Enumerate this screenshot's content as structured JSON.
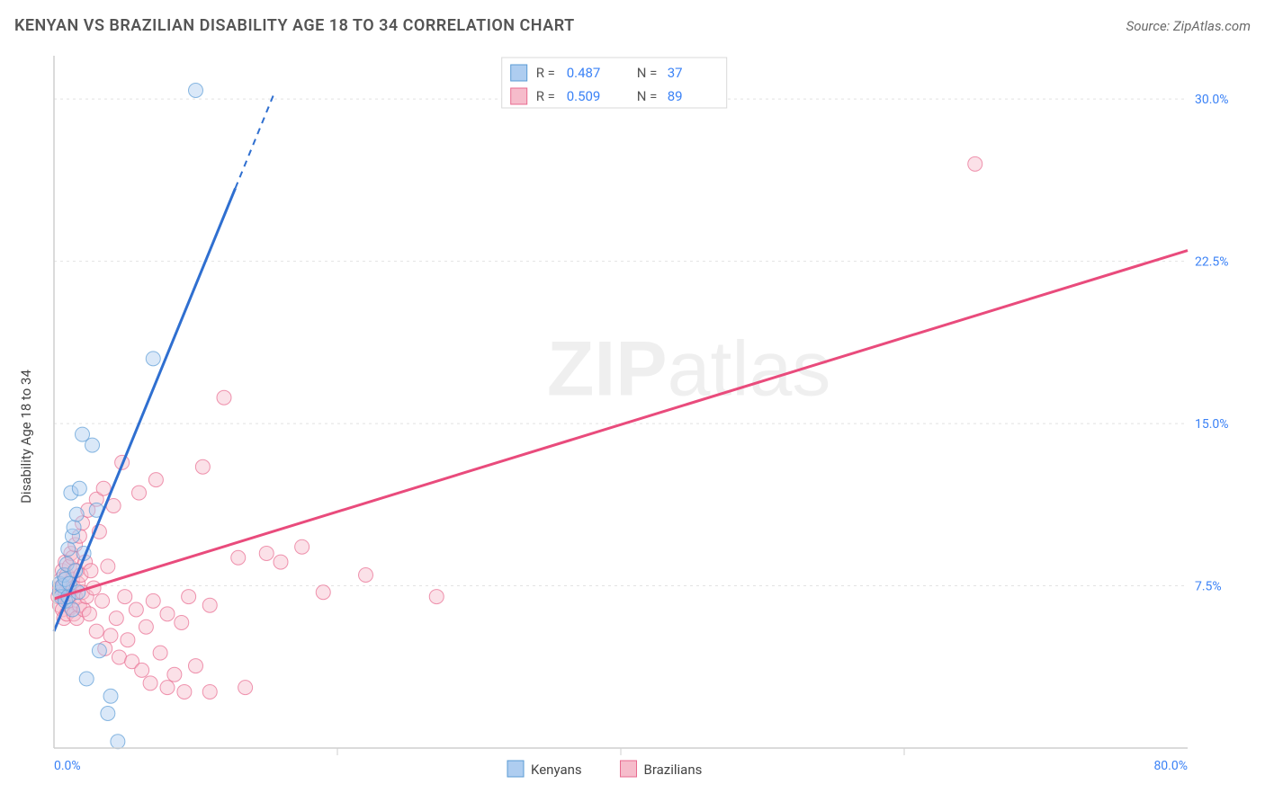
{
  "title": "KENYAN VS BRAZILIAN DISABILITY AGE 18 TO 34 CORRELATION CHART",
  "source": "Source: ZipAtlas.com",
  "watermark": {
    "left": "ZIP",
    "right": "atlas"
  },
  "chart": {
    "type": "scatter",
    "y_axis_label": "Disability Age 18 to 34",
    "xlim": [
      0,
      80
    ],
    "ylim": [
      0,
      32
    ],
    "x_ticks": [
      {
        "v": 0,
        "label": "0.0%"
      },
      {
        "v": 80,
        "label": "80.0%"
      }
    ],
    "y_ticks": [
      {
        "v": 7.5,
        "label": "7.5%"
      },
      {
        "v": 15,
        "label": "15.0%"
      },
      {
        "v": 22.5,
        "label": "22.5%"
      },
      {
        "v": 30,
        "label": "30.0%"
      }
    ],
    "x_minor_step": 20,
    "grid_color": "#e2e2e2",
    "axis_color": "#cfcfcf",
    "tick_color": "#3b82f6",
    "background_color": "#ffffff",
    "marker_radius": 8,
    "marker_opacity": 0.45,
    "trend_width": 3,
    "series": [
      {
        "name": "Kenyans",
        "color_stroke": "#5a9bd5",
        "color_fill": "#aecdf0",
        "trend_color": "#2f6fd0",
        "trend": {
          "x0": 0,
          "y0": 5.4,
          "x1": 15.5,
          "y1": 30.2,
          "solid_x_end": 12.8
        },
        "stats": {
          "R": "0.487",
          "N": "37"
        },
        "points": [
          [
            0.4,
            7.2
          ],
          [
            0.4,
            7.6
          ],
          [
            0.5,
            7.0
          ],
          [
            0.6,
            7.5
          ],
          [
            0.7,
            8.0
          ],
          [
            0.8,
            6.8
          ],
          [
            0.8,
            7.8
          ],
          [
            0.9,
            8.5
          ],
          [
            1.0,
            9.2
          ],
          [
            1.0,
            7.0
          ],
          [
            1.1,
            7.6
          ],
          [
            1.2,
            11.8
          ],
          [
            1.3,
            9.8
          ],
          [
            1.3,
            6.4
          ],
          [
            1.4,
            10.2
          ],
          [
            1.5,
            8.2
          ],
          [
            1.6,
            10.8
          ],
          [
            1.7,
            7.2
          ],
          [
            1.8,
            12.0
          ],
          [
            2.0,
            14.5
          ],
          [
            2.1,
            9.0
          ],
          [
            2.3,
            3.2
          ],
          [
            2.7,
            14.0
          ],
          [
            3.0,
            11.0
          ],
          [
            3.2,
            4.5
          ],
          [
            3.8,
            1.6
          ],
          [
            4.0,
            2.4
          ],
          [
            4.5,
            0.3
          ],
          [
            7.0,
            18.0
          ],
          [
            10.0,
            30.4
          ]
        ]
      },
      {
        "name": "Brazilians",
        "color_stroke": "#e86a8f",
        "color_fill": "#f6bccb",
        "trend_color": "#e94b7c",
        "trend": {
          "x0": 0,
          "y0": 6.9,
          "x1": 80,
          "y1": 23.0,
          "solid_x_end": 80
        },
        "stats": {
          "R": "0.509",
          "N": "89"
        },
        "points": [
          [
            0.3,
            7.0
          ],
          [
            0.4,
            7.4
          ],
          [
            0.4,
            6.6
          ],
          [
            0.5,
            7.8
          ],
          [
            0.5,
            7.1
          ],
          [
            0.6,
            6.4
          ],
          [
            0.6,
            8.2
          ],
          [
            0.7,
            7.5
          ],
          [
            0.7,
            6.0
          ],
          [
            0.8,
            8.6
          ],
          [
            0.8,
            7.2
          ],
          [
            0.9,
            6.2
          ],
          [
            0.9,
            8.0
          ],
          [
            1.0,
            7.6
          ],
          [
            1.0,
            6.8
          ],
          [
            1.1,
            8.4
          ],
          [
            1.1,
            7.0
          ],
          [
            1.2,
            9.0
          ],
          [
            1.2,
            6.5
          ],
          [
            1.3,
            7.8
          ],
          [
            1.3,
            8.8
          ],
          [
            1.4,
            6.2
          ],
          [
            1.4,
            7.4
          ],
          [
            1.5,
            9.4
          ],
          [
            1.5,
            7.0
          ],
          [
            1.6,
            8.2
          ],
          [
            1.6,
            6.0
          ],
          [
            1.7,
            7.6
          ],
          [
            1.8,
            9.8
          ],
          [
            1.8,
            6.6
          ],
          [
            1.9,
            8.0
          ],
          [
            2.0,
            7.2
          ],
          [
            2.0,
            10.4
          ],
          [
            2.1,
            6.4
          ],
          [
            2.2,
            8.6
          ],
          [
            2.3,
            7.0
          ],
          [
            2.4,
            11.0
          ],
          [
            2.5,
            6.2
          ],
          [
            2.6,
            8.2
          ],
          [
            2.8,
            7.4
          ],
          [
            3.0,
            11.5
          ],
          [
            3.0,
            5.4
          ],
          [
            3.2,
            10.0
          ],
          [
            3.4,
            6.8
          ],
          [
            3.5,
            12.0
          ],
          [
            3.6,
            4.6
          ],
          [
            3.8,
            8.4
          ],
          [
            4.0,
            5.2
          ],
          [
            4.2,
            11.2
          ],
          [
            4.4,
            6.0
          ],
          [
            4.6,
            4.2
          ],
          [
            4.8,
            13.2
          ],
          [
            5.0,
            7.0
          ],
          [
            5.2,
            5.0
          ],
          [
            5.5,
            4.0
          ],
          [
            5.8,
            6.4
          ],
          [
            6.0,
            11.8
          ],
          [
            6.2,
            3.6
          ],
          [
            6.5,
            5.6
          ],
          [
            6.8,
            3.0
          ],
          [
            7.0,
            6.8
          ],
          [
            7.2,
            12.4
          ],
          [
            7.5,
            4.4
          ],
          [
            8.0,
            2.8
          ],
          [
            8.0,
            6.2
          ],
          [
            8.5,
            3.4
          ],
          [
            9.0,
            5.8
          ],
          [
            9.2,
            2.6
          ],
          [
            9.5,
            7.0
          ],
          [
            10.0,
            3.8
          ],
          [
            10.5,
            13.0
          ],
          [
            11.0,
            2.6
          ],
          [
            11.0,
            6.6
          ],
          [
            12.0,
            16.2
          ],
          [
            13.0,
            8.8
          ],
          [
            13.5,
            2.8
          ],
          [
            15.0,
            9.0
          ],
          [
            16.0,
            8.6
          ],
          [
            17.5,
            9.3
          ],
          [
            19.0,
            7.2
          ],
          [
            22.0,
            8.0
          ],
          [
            27.0,
            7.0
          ],
          [
            65.0,
            27.0
          ]
        ]
      }
    ],
    "legend": {
      "items": [
        {
          "label": "Kenyans",
          "fill": "#aecdf0",
          "stroke": "#5a9bd5"
        },
        {
          "label": "Brazilians",
          "fill": "#f6bccb",
          "stroke": "#e86a8f"
        }
      ]
    }
  }
}
